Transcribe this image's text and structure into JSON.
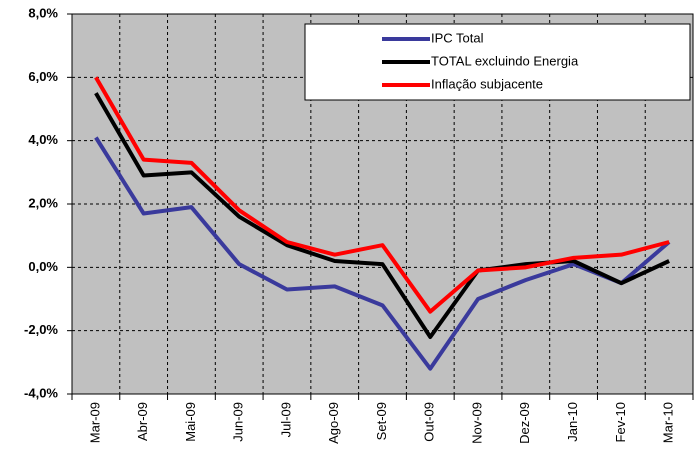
{
  "chart_data": {
    "type": "line",
    "categories": [
      "Mar-09",
      "Abr-09",
      "Mai-09",
      "Jun-09",
      "Jul-09",
      "Ago-09",
      "Set-09",
      "Out-09",
      "Nov-09",
      "Dez-09",
      "Jan-10",
      "Fev-10",
      "Mar-10"
    ],
    "series": [
      {
        "name": "IPC Total",
        "color": "#3a3a9c",
        "values": [
          4.1,
          1.7,
          1.9,
          0.1,
          -0.7,
          -0.6,
          -1.2,
          -3.2,
          -1.0,
          -0.4,
          0.1,
          -0.5,
          0.8
        ]
      },
      {
        "name": "TOTAL excluindo  Energia",
        "color": "#000000",
        "values": [
          5.5,
          2.9,
          3.0,
          1.6,
          0.7,
          0.2,
          0.1,
          -2.2,
          -0.1,
          0.1,
          0.2,
          -0.5,
          0.2
        ]
      },
      {
        "name": "Inflação subjacente",
        "color": "#ff0000",
        "values": [
          6.0,
          3.4,
          3.3,
          1.8,
          0.8,
          0.4,
          0.7,
          -1.4,
          -0.1,
          0.0,
          0.3,
          0.4,
          0.8
        ]
      }
    ],
    "ylim": [
      -4,
      8
    ],
    "yticks": [
      {
        "value": -4,
        "label": "-4,0%"
      },
      {
        "value": -2,
        "label": "-2,0%"
      },
      {
        "value": 0,
        "label": "0,0%"
      },
      {
        "value": 2,
        "label": "2,0%"
      },
      {
        "value": 4,
        "label": "4,0%"
      },
      {
        "value": 6,
        "label": "6,0%"
      },
      {
        "value": 8,
        "label": "8,0%"
      }
    ],
    "grid": true,
    "legend": "upper right",
    "plot_background": "#c0c0c0"
  }
}
